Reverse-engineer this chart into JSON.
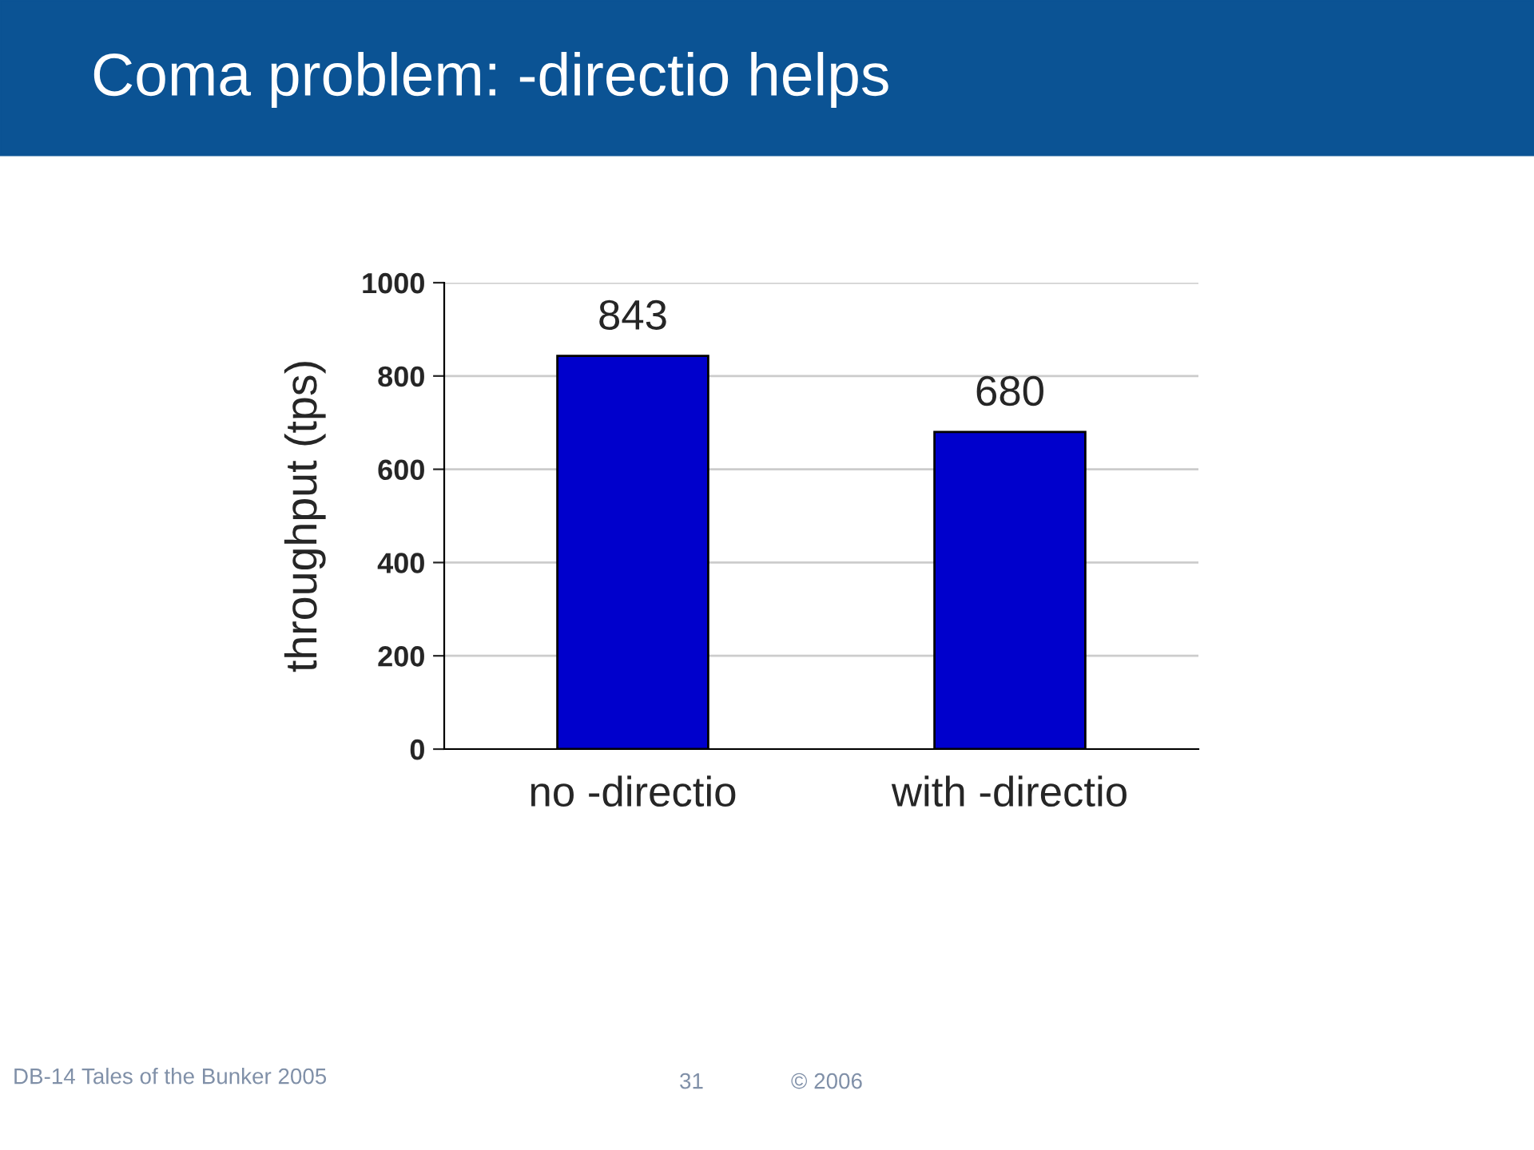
{
  "chart_data": {
    "type": "bar",
    "title": "Coma problem: -directio helps",
    "ylabel": "throughput (tps)",
    "categories": [
      "no -directio",
      "with -directio"
    ],
    "values": [
      843,
      680
    ],
    "color": "#0000cc",
    "ylim": [
      0,
      1000
    ],
    "yticks": [
      0,
      200,
      400,
      600,
      800,
      1000
    ],
    "grid": "y",
    "data_labels": true,
    "annotations": [
      "DB-14 Tales of the Bunker 2005",
      "31",
      "© 2006"
    ]
  }
}
